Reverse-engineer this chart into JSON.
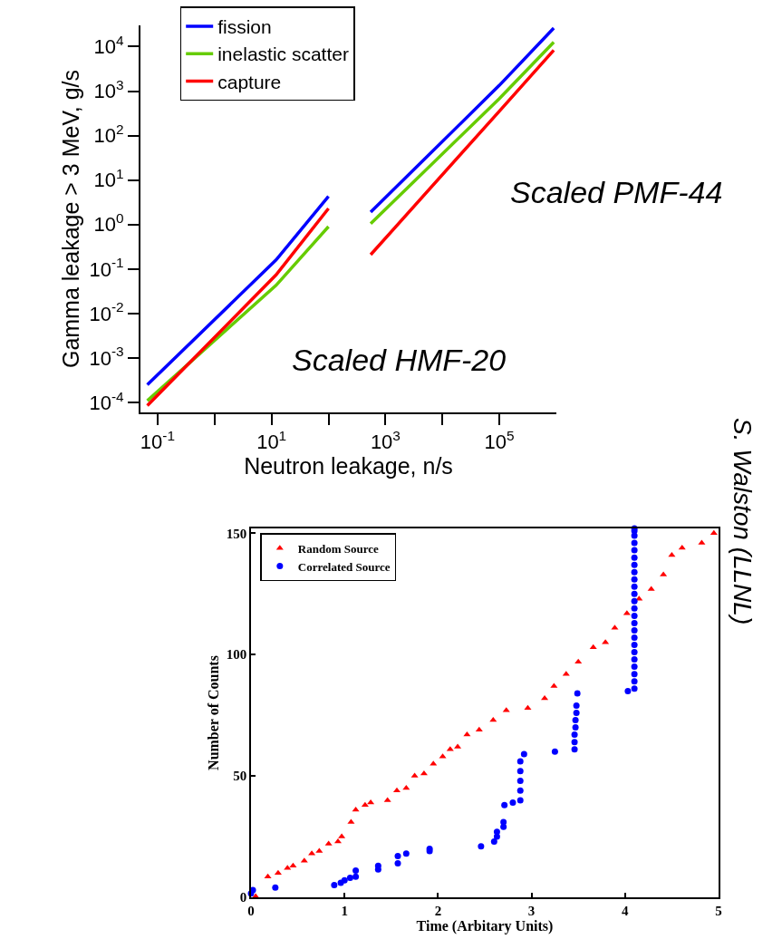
{
  "chart_data": [
    {
      "type": "line",
      "xlabel": "Neutron leakage, n/s",
      "ylabel": "Gamma leakage > 3 MeV, g/s",
      "log": "xy",
      "marker": "none",
      "line_style": "solid",
      "legend": "top left",
      "xlim": [
        0.05,
        1000000
      ],
      "xticks": [
        {
          "value": 0.1,
          "label": "10$^{-1}$"
        },
        {
          "value": 1,
          "label": null
        },
        {
          "value": 10,
          "label": "10$^{1}$"
        },
        {
          "value": 100,
          "label": null
        },
        {
          "value": 1000,
          "label": "10$^{3}$"
        },
        {
          "value": 10000,
          "label": null
        },
        {
          "value": 100000,
          "label": "10$^{5}$"
        }
      ],
      "ylim": [
        6e-05,
        30000
      ],
      "yticks": [
        {
          "value": 0.0001,
          "label": "10$^{-4}$"
        },
        {
          "value": 0.001,
          "label": "10$^{-3}$"
        },
        {
          "value": 0.01,
          "label": "10$^{-2}$"
        },
        {
          "value": 0.1,
          "label": "10$^{-1}$"
        },
        {
          "value": 1,
          "label": "10$^{0}$"
        },
        {
          "value": 10,
          "label": "10$^{1}$"
        },
        {
          "value": 100,
          "label": "10$^{2}$"
        },
        {
          "value": 1000,
          "label": "10$^{3}$"
        },
        {
          "value": 10000,
          "label": "10$^{4}$"
        }
      ],
      "x": [
        0.066,
        12,
        100,
        300,
        550,
        100000,
        900000
      ],
      "series": [
        {
          "name": "fission",
          "color": "#0000ff",
          "values": [
            0.00025,
            0.16,
            4.3,
            null,
            1.9,
            1350,
            26000
          ]
        },
        {
          "name": "inelastic scatter",
          "color": "#66cc00",
          "values": [
            0.00011,
            0.043,
            0.9,
            null,
            1.05,
            680,
            12600
          ]
        },
        {
          "name": "capture",
          "color": "#ff0000",
          "values": [
            8.5e-05,
            0.074,
            2.3,
            null,
            0.21,
            355,
            8300
          ]
        }
      ],
      "annotations": [
        "Scaled HMF-20",
        "Scaled PMF-44",
        "S. Walston (LLNL)"
      ]
    },
    {
      "type": "scatter",
      "xlabel": "Time (Arbitary Units)",
      "ylabel": "Number of Counts",
      "legend": "top left",
      "xlim": [
        0,
        5
      ],
      "xticks": [
        0,
        1,
        2,
        3,
        4,
        5
      ],
      "ylim": [
        0,
        152
      ],
      "yticks": [
        0,
        50,
        100,
        150
      ],
      "series": [
        {
          "name": "Random Source",
          "color": "#ff0000",
          "marker": "triangle",
          "x": [
            0.05,
            0.18,
            0.29,
            0.39,
            0.45,
            0.57,
            0.65,
            0.73,
            0.83,
            0.93,
            0.97,
            1.07,
            1.12,
            1.22,
            1.28,
            1.46,
            1.56,
            1.66,
            1.75,
            1.85,
            1.95,
            2.05,
            2.13,
            2.21,
            2.31,
            2.44,
            2.59,
            2.73,
            2.96,
            3.14,
            3.24,
            3.37,
            3.5,
            3.66,
            3.79,
            3.89,
            4.02,
            4.15,
            4.28,
            4.41,
            4.5,
            4.61,
            4.82,
            4.95
          ],
          "values": [
            0.4,
            8.5,
            10,
            12,
            13,
            15,
            18,
            19,
            22,
            23,
            25,
            31,
            36,
            38,
            39,
            40,
            44,
            45,
            50,
            51,
            55,
            58,
            61,
            62,
            67,
            69,
            73,
            77,
            78,
            82,
            87,
            92,
            97,
            103,
            105,
            111,
            117,
            123,
            127,
            133,
            141,
            144,
            146,
            150
          ]
        },
        {
          "name": "Correlated Source",
          "color": "#0000ff",
          "marker": "circle",
          "x": [
            0,
            0.02,
            0.26,
            0.89,
            0.96,
            1.0,
            1.06,
            1.12,
            1.12,
            1.36,
            1.36,
            1.57,
            1.57,
            1.66,
            1.91,
            1.91,
            2.46,
            2.6,
            2.63,
            2.63,
            2.7,
            2.7,
            2.71,
            2.8,
            2.88,
            2.88,
            2.88,
            2.88,
            2.88,
            2.92,
            3.25,
            3.46,
            3.46,
            3.46,
            3.47,
            3.47,
            3.48,
            3.48,
            3.49,
            4.03,
            4.1,
            4.1,
            4.1,
            4.1,
            4.1,
            4.1,
            4.1,
            4.1,
            4.1,
            4.1,
            4.1,
            4.1,
            4.1,
            4.1,
            4.1,
            4.1,
            4.1,
            4.1,
            4.1,
            4.1,
            4.1,
            4.1,
            4.1,
            4.1
          ],
          "values": [
            1.6,
            3,
            4,
            5,
            6,
            7,
            8,
            8.5,
            11,
            11.5,
            13,
            14,
            17,
            18,
            19,
            20,
            21,
            23,
            25,
            27,
            29,
            31,
            38,
            39,
            40,
            44,
            48,
            52,
            56,
            59,
            60,
            61,
            64,
            67,
            70,
            73,
            76,
            79,
            84,
            85,
            86,
            89,
            92,
            95,
            98,
            101,
            104,
            107,
            110,
            113,
            116,
            119,
            122,
            125,
            128,
            131,
            134,
            137,
            140,
            143,
            146,
            149,
            151,
            152
          ]
        }
      ]
    }
  ]
}
